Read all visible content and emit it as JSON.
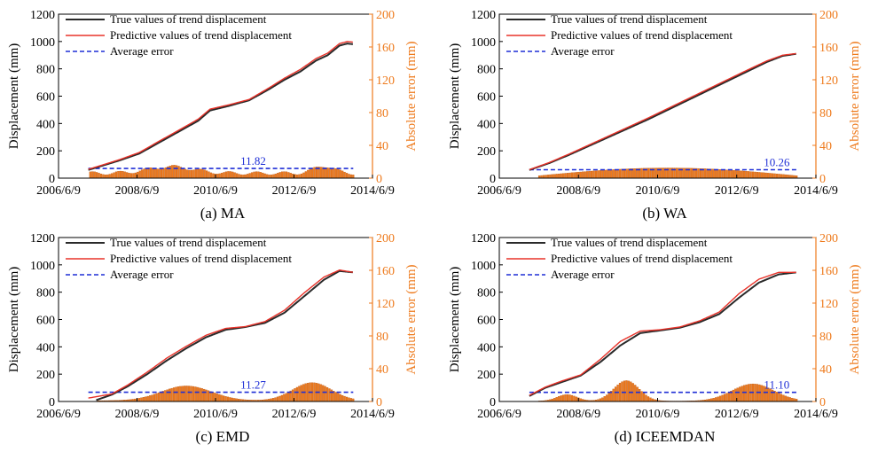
{
  "colors": {
    "true_line": "#2a2a2a",
    "pred_line": "#e8332a",
    "avg_error": "#1f2fd6",
    "bars": "#ee7a1c",
    "bar_edge": "#b8500a",
    "right_axis": "#ee7a1c",
    "avg_label": "#1f2fd6"
  },
  "chart_data": [
    {
      "type": "line",
      "panel_label": "(a)  MA",
      "ylabel": "Displacement (mm)",
      "y2label": "Absolute error (mm)",
      "xticks": [
        "2006/6/9",
        "2008/6/9",
        "2010/6/9",
        "2012/6/9",
        "2014/6/9"
      ],
      "ylim": [
        0,
        1200
      ],
      "yticks": [
        "0",
        "200",
        "400",
        "600",
        "800",
        "1000",
        "1200"
      ],
      "y2lim": [
        0,
        200
      ],
      "y2ticks": [
        "0",
        "40",
        "80",
        "120",
        "160",
        "200"
      ],
      "legend": [
        "True values of trend displacement",
        "Predictive values of trend displacement",
        "Average error"
      ],
      "legend_position": "top-left",
      "series": [
        {
          "name": "True values of trend displacement",
          "x": [
            2007.2,
            2007.6,
            2008.0,
            2008.5,
            2009.0,
            2009.5,
            2010.0,
            2010.3,
            2010.8,
            2011.3,
            2011.8,
            2012.2,
            2012.6,
            2013.0,
            2013.3,
            2013.6,
            2013.8,
            2013.95
          ],
          "y": [
            60,
            95,
            130,
            180,
            260,
            340,
            420,
            495,
            530,
            570,
            650,
            720,
            780,
            860,
            900,
            970,
            985,
            980
          ]
        },
        {
          "name": "Predictive values of trend displacement",
          "x": [
            2007.2,
            2007.6,
            2008.0,
            2008.5,
            2009.0,
            2009.5,
            2010.0,
            2010.3,
            2010.8,
            2011.3,
            2011.8,
            2012.2,
            2012.6,
            2013.0,
            2013.3,
            2013.6,
            2013.8,
            2013.95
          ],
          "y": [
            65,
            100,
            136,
            188,
            270,
            350,
            432,
            505,
            538,
            576,
            660,
            732,
            795,
            875,
            915,
            985,
            1000,
            995
          ]
        }
      ],
      "bars": {
        "name": "Absolute error",
        "start": 2007.25,
        "end": 2013.95,
        "profile": "ma"
      },
      "average_error": {
        "name": "Average error",
        "value": 11.82,
        "label": "11.82",
        "x_start": 2007.2,
        "x_end": 2013.95
      }
    },
    {
      "type": "line",
      "panel_label": "(b)  WA",
      "ylabel": "Displacement (mm)",
      "y2label": "Absolute error (mm)",
      "xticks": [
        "2006/6/9",
        "2008/6/9",
        "2010/6/9",
        "2012/6/9",
        "2014/6/9"
      ],
      "ylim": [
        0,
        1200
      ],
      "yticks": [
        "0",
        "200",
        "400",
        "600",
        "800",
        "1000",
        "1200"
      ],
      "y2lim": [
        0,
        200
      ],
      "y2ticks": [
        "0",
        "40",
        "80",
        "120",
        "160",
        "200"
      ],
      "legend": [
        "True values of trend displacement",
        "Predictive values of trend displacement",
        "Average error"
      ],
      "legend_position": "top-left",
      "series": [
        {
          "name": "True values of trend displacement",
          "x": [
            2007.2,
            2007.7,
            2008.2,
            2008.7,
            2009.2,
            2009.7,
            2010.2,
            2010.7,
            2011.2,
            2011.7,
            2012.2,
            2012.7,
            2013.2,
            2013.6,
            2013.95
          ],
          "y": [
            60,
            110,
            170,
            235,
            300,
            365,
            430,
            500,
            570,
            640,
            710,
            780,
            850,
            895,
            910
          ]
        },
        {
          "name": "Predictive values of trend displacement",
          "x": [
            2007.2,
            2007.7,
            2008.2,
            2008.7,
            2009.2,
            2009.7,
            2010.2,
            2010.7,
            2011.2,
            2011.7,
            2012.2,
            2012.7,
            2013.2,
            2013.6,
            2013.95
          ],
          "y": [
            62,
            114,
            176,
            242,
            308,
            374,
            440,
            510,
            580,
            650,
            720,
            790,
            858,
            900,
            912
          ]
        }
      ],
      "bars": {
        "name": "Absolute error",
        "start": 2007.45,
        "end": 2013.95,
        "profile": "wa"
      },
      "average_error": {
        "name": "Average error",
        "value": 10.26,
        "label": "10.26",
        "x_start": 2007.2,
        "x_end": 2013.95
      }
    },
    {
      "type": "line",
      "panel_label": "(c)  EMD",
      "ylabel": "Displacement (mm)",
      "y2label": "Absolute error (mm)",
      "xticks": [
        "2006/6/9",
        "2008/6/9",
        "2010/6/9",
        "2012/6/9",
        "2014/6/9"
      ],
      "ylim": [
        0,
        1200
      ],
      "yticks": [
        "0",
        "200",
        "400",
        "600",
        "800",
        "1000",
        "1200"
      ],
      "y2lim": [
        0,
        200
      ],
      "y2ticks": [
        "0",
        "40",
        "80",
        "120",
        "160",
        "200"
      ],
      "legend": [
        "True values of trend displacement",
        "Predictive values of trend displacement",
        "Average error"
      ],
      "legend_position": "top-left",
      "series": [
        {
          "name": "True values of trend displacement",
          "x": [
            2007.4,
            2007.8,
            2008.2,
            2008.7,
            2009.2,
            2009.7,
            2010.2,
            2010.7,
            2011.2,
            2011.7,
            2012.2,
            2012.7,
            2013.2,
            2013.6,
            2013.95
          ],
          "y": [
            10,
            50,
            110,
            200,
            300,
            390,
            470,
            525,
            545,
            575,
            650,
            770,
            890,
            955,
            945
          ]
        },
        {
          "name": "Predictive values of trend displacement",
          "x": [
            2007.2,
            2007.8,
            2008.2,
            2008.7,
            2009.2,
            2009.7,
            2010.2,
            2010.7,
            2011.2,
            2011.7,
            2012.2,
            2012.7,
            2013.2,
            2013.6,
            2013.95
          ],
          "y": [
            25,
            55,
            120,
            215,
            318,
            405,
            485,
            535,
            548,
            585,
            668,
            795,
            910,
            962,
            945
          ]
        }
      ],
      "bars": {
        "name": "Absolute error",
        "start": 2007.45,
        "end": 2013.95,
        "profile": "emd"
      },
      "average_error": {
        "name": "Average error",
        "value": 11.27,
        "label": "11.27",
        "x_start": 2007.2,
        "x_end": 2013.95
      }
    },
    {
      "type": "line",
      "panel_label": "(d)  ICEEMDAN",
      "ylabel": "Displacement (mm)",
      "y2label": "Absolute error (mm)",
      "xticks": [
        "2006/6/9",
        "2008/6/9",
        "2010/6/9",
        "2012/6/9",
        "2014/6/9"
      ],
      "ylim": [
        0,
        1200
      ],
      "yticks": [
        "0",
        "200",
        "400",
        "600",
        "800",
        "1000",
        "1200"
      ],
      "y2lim": [
        0,
        200
      ],
      "y2ticks": [
        "0",
        "40",
        "80",
        "120",
        "160",
        "200"
      ],
      "legend": [
        "True values of trend displacement",
        "Predictive values of trend displacement",
        "Average error"
      ],
      "legend_position": "top-left",
      "series": [
        {
          "name": "True values of trend displacement",
          "x": [
            2007.2,
            2007.6,
            2008.0,
            2008.5,
            2009.0,
            2009.5,
            2010.0,
            2010.5,
            2011.0,
            2011.5,
            2012.0,
            2012.5,
            2013.0,
            2013.5,
            2013.95
          ],
          "y": [
            40,
            100,
            140,
            190,
            290,
            410,
            500,
            520,
            540,
            580,
            640,
            760,
            870,
            930,
            945
          ]
        },
        {
          "name": "Predictive values of trend displacement",
          "x": [
            2007.2,
            2007.6,
            2008.0,
            2008.5,
            2009.0,
            2009.5,
            2010.0,
            2010.5,
            2011.0,
            2011.5,
            2012.0,
            2012.5,
            2013.0,
            2013.5,
            2013.95
          ],
          "y": [
            45,
            105,
            148,
            195,
            310,
            440,
            515,
            525,
            545,
            590,
            655,
            790,
            895,
            945,
            945
          ]
        }
      ],
      "bars": {
        "name": "Absolute error",
        "start": 2007.45,
        "end": 2013.95,
        "profile": "iceemdan"
      },
      "average_error": {
        "name": "Average error",
        "value": 11.1,
        "label": "11.10",
        "x_start": 2007.2,
        "x_end": 2013.95
      }
    }
  ]
}
